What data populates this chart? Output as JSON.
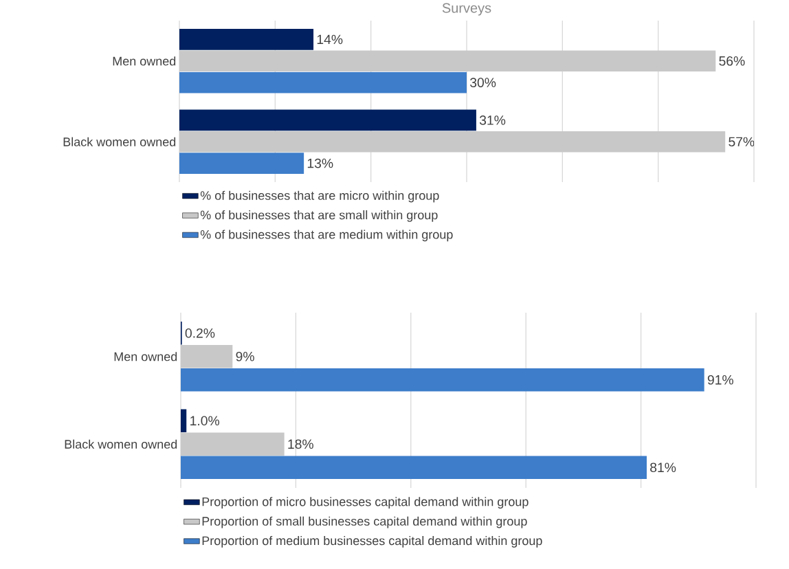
{
  "chart_data": [
    {
      "type": "bar",
      "orientation": "horizontal",
      "title": "Surveys",
      "categories": [
        "Men owned",
        "Black women owned"
      ],
      "xlim": [
        0,
        60
      ],
      "xticks": [
        0,
        10,
        20,
        30,
        40,
        50,
        60
      ],
      "tick_labels": "y",
      "grid": "x",
      "legend": "bottom",
      "series": [
        {
          "name": "% of businesses that are micro within group",
          "color": "#002060",
          "values": [
            14,
            31
          ],
          "value_labels": [
            "14%",
            "31%"
          ]
        },
        {
          "name": "% of businesses that are small within group",
          "color": "#c8c8c8",
          "values": [
            56,
            57
          ],
          "value_labels": [
            "56%",
            "57%"
          ]
        },
        {
          "name": "% of businesses that are medium within group",
          "color": "#3d7dca",
          "values": [
            30,
            13
          ],
          "value_labels": [
            "30%",
            "13%"
          ]
        }
      ]
    },
    {
      "type": "bar",
      "orientation": "horizontal",
      "categories": [
        "Men owned",
        "Black women owned"
      ],
      "xlim": [
        0,
        100
      ],
      "xticks": [
        0,
        20,
        40,
        60,
        80,
        100
      ],
      "tick_labels": "y",
      "grid": "x",
      "legend": "bottom",
      "series": [
        {
          "name": "Proportion of micro businesses capital demand within group",
          "color": "#002060",
          "values": [
            0.2,
            1.0
          ],
          "value_labels": [
            "0.2%",
            "1.0%"
          ]
        },
        {
          "name": "Proportion of small businesses capital demand within group",
          "color": "#c8c8c8",
          "values": [
            9,
            18
          ],
          "value_labels": [
            "9%",
            "18%"
          ]
        },
        {
          "name": "Proportion of medium businesses capital demand within group",
          "color": "#3d7dca",
          "values": [
            91,
            81
          ],
          "value_labels": [
            "91%",
            "81%"
          ]
        }
      ]
    }
  ]
}
